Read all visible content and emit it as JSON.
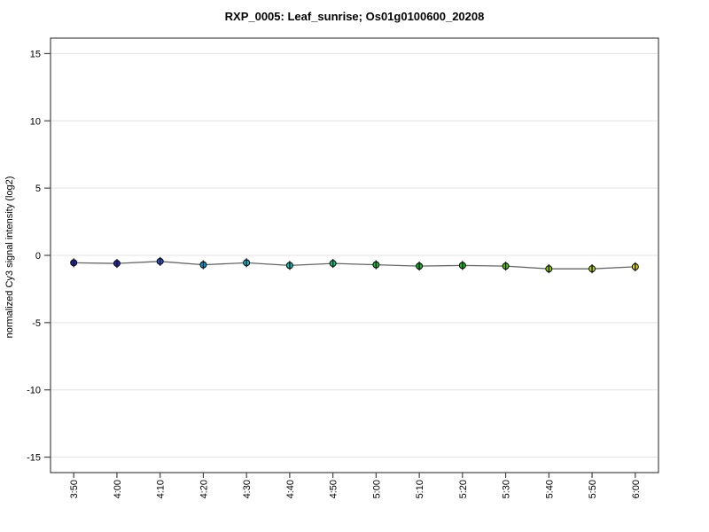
{
  "window": {
    "background": "#ffffff"
  },
  "chart_data": {
    "type": "line",
    "title": "RXP_0005: Leaf_sunrise; Os01g0100600_20208",
    "ylabel": "normalized Cy3 signal intensity (log2)",
    "xlabel": "",
    "categories": [
      "3:50",
      "4:00",
      "4:10",
      "4:20",
      "4:30",
      "4:40",
      "4:50",
      "5:00",
      "5:10",
      "5:20",
      "5:30",
      "5:40",
      "5:50",
      "6:00"
    ],
    "values": [
      -0.55,
      -0.6,
      -0.45,
      -0.7,
      -0.55,
      -0.75,
      -0.6,
      -0.7,
      -0.8,
      -0.75,
      -0.8,
      -1.0,
      -1.0,
      -0.85
    ],
    "point_colors": [
      "#2020B4",
      "#2626C4",
      "#2B52D9",
      "#00A0DC",
      "#00C0CC",
      "#00C4B4",
      "#00C878",
      "#0AC23F",
      "#12B528",
      "#0FC40F",
      "#4CCB00",
      "#8CCD00",
      "#ACD500",
      "#E0DA00"
    ],
    "point_error_halfheight": 0.33,
    "ylim": [
      -16.15,
      16.15
    ],
    "yticks": [
      -15,
      -10,
      -5,
      0,
      5,
      10,
      15
    ],
    "grid": "horizontal",
    "legend_position": "none",
    "styles": {
      "line_color": "#666666",
      "marker_stroke": "#000000",
      "grid_color": "#e3e3e3",
      "axis_color": "#454545",
      "tick_label_color": "#000000",
      "error_bar_color": "#1a1a1a"
    }
  }
}
